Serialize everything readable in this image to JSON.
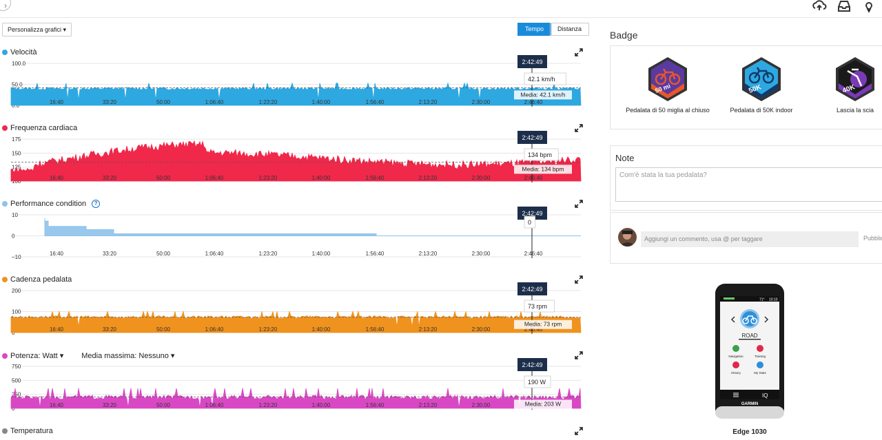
{
  "toolbar": {
    "customize_label": "Personalizza grafici ▾",
    "tab_time": "Tempo",
    "tab_distance": "Distanza"
  },
  "x_ticks": [
    "16:40",
    "33:20",
    "50:00",
    "1:06:40",
    "1:23:20",
    "1:40:00",
    "1:56:40",
    "2:13:20",
    "2:30:00",
    "2:46:40"
  ],
  "cursor_time": "2:42:49",
  "charts": [
    {
      "key": "speed",
      "title": "Velocità",
      "color": "#2ea8e0",
      "dot": "#2ea8e0",
      "y_ticks": [
        "100.0",
        "50.0",
        "0.0"
      ],
      "ymax": 100,
      "cursor_value": "42.1 km/h",
      "avg_label": "Media: 42.1 km/h",
      "avg": 42,
      "base": 40
    },
    {
      "key": "hr",
      "title": "Frequenza cardiaca",
      "color": "#f0284a",
      "dot": "#f0284a",
      "y_ticks": [
        "175",
        "150",
        "125",
        "100"
      ],
      "ymax": 175,
      "ymin": 100,
      "cursor_value": "134 bpm",
      "avg_label": "Media: 134 bpm",
      "avg": 134,
      "base": 135
    },
    {
      "key": "perf",
      "title": "Performance condition",
      "color": "#8ec2ea",
      "dot": "#8ec2ea",
      "y_ticks": [
        "10",
        "0",
        "−10"
      ],
      "ymax": 10,
      "ymin": -10,
      "cursor_value": "0",
      "avg_label": "",
      "avg": 0,
      "base": 0
    },
    {
      "key": "cad",
      "title": "Cadenza pedalata",
      "color": "#f0921e",
      "dot": "#f0921e",
      "y_ticks": [
        "200",
        "100",
        "0"
      ],
      "ymax": 200,
      "cursor_value": "73 rpm",
      "avg_label": "Media: 73 rpm",
      "avg": 73,
      "base": 75
    },
    {
      "key": "pow",
      "title": "Potenza: Watt",
      "color": "#d948c4",
      "dot": "#d948c4",
      "extra_label": "Media massima: Nessuno",
      "y_ticks": [
        "750",
        "500",
        "250",
        "0"
      ],
      "ymax": 750,
      "cursor_value": "190 W",
      "avg_label": "Media: 203 W",
      "avg": 203,
      "base": 200
    }
  ],
  "temperature": {
    "title": "Temperatura",
    "color": "#888888"
  },
  "badges": {
    "title": "Badge",
    "items": [
      {
        "label": "Pedalata di 50 miglia al chiuso",
        "tag": "50 mi",
        "color": "#e8572a",
        "bg": "#5a3aa0"
      },
      {
        "label": "Pedalata di 50K indoor",
        "tag": "50K",
        "color": "#2ea8e0",
        "bg": "#123a6a"
      },
      {
        "label": "Lascia la scia",
        "tag": "40K",
        "color": "#7a3ab8",
        "bg": "#1a1a1a"
      }
    ]
  },
  "notes": {
    "title": "Note",
    "placeholder": "Com'è stata la tua pedalata?"
  },
  "comment": {
    "placeholder": "Aggiungi un commento, usa @ per taggare",
    "publish": "Pubblica"
  },
  "device": {
    "name": "Edge 1030",
    "brand": "GARMIN",
    "profile": "ROAD",
    "status_temp": "71°",
    "status_time": "10:10",
    "menu": [
      "Navigation",
      "Training",
      "History",
      "My Stats"
    ]
  }
}
